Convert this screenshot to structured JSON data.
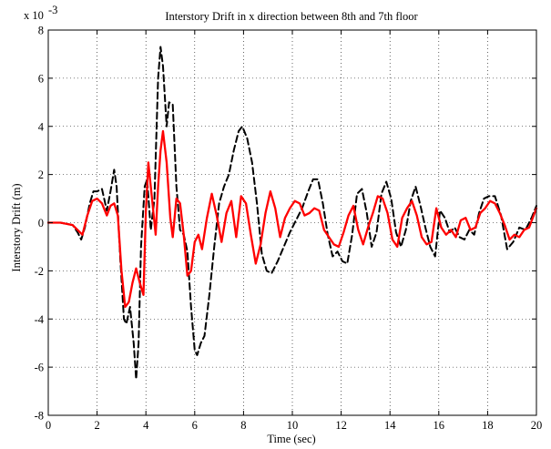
{
  "chart_data": {
    "type": "line",
    "title": "Interstory Drift in x direction between 8th and 7th floor",
    "xlabel": "Time (sec)",
    "ylabel": "Interstory Drift (m)",
    "y_multiplier_label": "x 10",
    "y_multiplier_exponent": "-3",
    "xlim": [
      0,
      20
    ],
    "ylim": [
      -8,
      8
    ],
    "xticks": [
      0,
      2,
      4,
      6,
      8,
      10,
      12,
      14,
      16,
      18,
      20
    ],
    "yticks": [
      -8,
      -6,
      -4,
      -2,
      0,
      2,
      4,
      6,
      8
    ],
    "grid": true,
    "series": [
      {
        "color": "#000000",
        "style": "dashed",
        "x": [
          0,
          0.5,
          1.0,
          1.2,
          1.35,
          1.5,
          1.7,
          1.85,
          2.0,
          2.2,
          2.4,
          2.55,
          2.7,
          2.8,
          2.95,
          3.1,
          3.2,
          3.35,
          3.5,
          3.6,
          3.7,
          3.8,
          3.95,
          4.05,
          4.2,
          4.35,
          4.5,
          4.6,
          4.7,
          4.85,
          4.95,
          5.1,
          5.25,
          5.4,
          5.55,
          5.7,
          5.85,
          6.0,
          6.1,
          6.25,
          6.4,
          6.6,
          6.8,
          7.0,
          7.2,
          7.4,
          7.6,
          7.8,
          7.95,
          8.15,
          8.35,
          8.55,
          8.75,
          8.95,
          9.15,
          9.4,
          9.65,
          9.9,
          10.15,
          10.4,
          10.65,
          10.85,
          11.05,
          11.25,
          11.45,
          11.65,
          11.85,
          12.05,
          12.25,
          12.45,
          12.65,
          12.85,
          13.05,
          13.25,
          13.45,
          13.65,
          13.85,
          14.05,
          14.25,
          14.45,
          14.65,
          14.85,
          15.05,
          15.25,
          15.45,
          15.65,
          15.85,
          16.05,
          16.25,
          16.45,
          16.65,
          16.85,
          17.05,
          17.25,
          17.45,
          17.65,
          17.85,
          18.05,
          18.3,
          18.55,
          18.8,
          19.05,
          19.3,
          19.55,
          19.8,
          20.0
        ],
        "y": [
          0,
          0,
          -0.1,
          -0.4,
          -0.7,
          -0.2,
          0.8,
          1.3,
          1.3,
          1.4,
          0.5,
          1.3,
          2.2,
          1.5,
          -1.5,
          -4.0,
          -4.2,
          -3.5,
          -5.0,
          -6.5,
          -5.0,
          -1.0,
          1.5,
          1.8,
          -0.3,
          1.0,
          6.0,
          7.3,
          6.5,
          4.0,
          5.0,
          4.9,
          1.5,
          -0.3,
          -0.5,
          -1.2,
          -3.5,
          -5.3,
          -5.5,
          -5.0,
          -4.7,
          -3.0,
          -1.0,
          0.8,
          1.5,
          2.0,
          3.0,
          3.8,
          4.0,
          3.5,
          2.5,
          0.8,
          -1.3,
          -2.0,
          -2.1,
          -1.6,
          -1.0,
          -0.4,
          0.1,
          0.6,
          1.3,
          1.8,
          1.8,
          0.8,
          -0.5,
          -1.4,
          -1.2,
          -1.6,
          -1.7,
          -0.5,
          1.2,
          1.4,
          0.4,
          -1.0,
          -0.4,
          1.2,
          1.7,
          1.0,
          -0.4,
          -1.0,
          -0.3,
          0.9,
          1.5,
          0.7,
          -0.2,
          -1.0,
          -1.4,
          0.5,
          0.2,
          -0.4,
          -0.2,
          -0.6,
          -0.7,
          -0.3,
          -0.5,
          0.4,
          1.0,
          1.1,
          1.1,
          0.3,
          -1.1,
          -0.8,
          -0.2,
          -0.3,
          0.2,
          0.7
        ]
      },
      {
        "color": "#ff0000",
        "style": "solid",
        "x": [
          0,
          0.5,
          1.0,
          1.2,
          1.4,
          1.6,
          1.8,
          2.0,
          2.2,
          2.4,
          2.55,
          2.7,
          2.85,
          3.0,
          3.15,
          3.3,
          3.45,
          3.6,
          3.75,
          3.9,
          4.0,
          4.1,
          4.25,
          4.4,
          4.5,
          4.6,
          4.7,
          4.85,
          5.0,
          5.1,
          5.25,
          5.4,
          5.55,
          5.7,
          5.85,
          6.0,
          6.15,
          6.3,
          6.5,
          6.7,
          6.9,
          7.1,
          7.3,
          7.5,
          7.7,
          7.9,
          8.1,
          8.3,
          8.5,
          8.7,
          8.9,
          9.1,
          9.3,
          9.5,
          9.7,
          9.9,
          10.1,
          10.3,
          10.5,
          10.7,
          10.9,
          11.1,
          11.3,
          11.5,
          11.7,
          11.9,
          12.1,
          12.3,
          12.5,
          12.7,
          12.9,
          13.1,
          13.3,
          13.5,
          13.7,
          13.9,
          14.1,
          14.3,
          14.5,
          14.7,
          14.9,
          15.1,
          15.3,
          15.5,
          15.7,
          15.9,
          16.1,
          16.3,
          16.5,
          16.7,
          16.9,
          17.1,
          17.3,
          17.5,
          17.7,
          17.9,
          18.1,
          18.3,
          18.5,
          18.7,
          18.9,
          19.1,
          19.3,
          19.5,
          19.7,
          20.0
        ],
        "y": [
          0,
          0,
          -0.1,
          -0.3,
          -0.5,
          0.3,
          0.9,
          1.0,
          0.8,
          0.3,
          0.7,
          0.8,
          0.3,
          -2.0,
          -3.5,
          -3.3,
          -2.5,
          -1.9,
          -2.5,
          -3.0,
          0.5,
          2.5,
          1.0,
          -0.5,
          1.5,
          3.0,
          3.8,
          2.5,
          0.2,
          -0.6,
          1.0,
          0.8,
          -0.5,
          -2.2,
          -2.0,
          -0.8,
          -0.5,
          -1.1,
          0.2,
          1.2,
          0.3,
          -0.8,
          0.4,
          0.9,
          -0.6,
          1.1,
          0.8,
          -0.5,
          -1.7,
          -0.9,
          0.4,
          1.3,
          0.6,
          -0.6,
          0.2,
          0.6,
          0.9,
          0.8,
          0.3,
          0.4,
          0.6,
          0.5,
          -0.3,
          -0.6,
          -0.9,
          -1.0,
          -0.4,
          0.3,
          0.7,
          -0.3,
          -0.9,
          -0.2,
          0.4,
          1.1,
          1.0,
          0.4,
          -0.7,
          -1.0,
          0.2,
          0.6,
          0.9,
          0.3,
          -0.6,
          -0.9,
          -0.8,
          0.6,
          -0.2,
          -0.5,
          -0.3,
          -0.6,
          0.1,
          0.2,
          -0.3,
          -0.2,
          0.4,
          0.6,
          0.9,
          0.8,
          0.4,
          -0.1,
          -0.7,
          -0.5,
          -0.6,
          -0.3,
          -0.2,
          0.6
        ]
      }
    ]
  }
}
